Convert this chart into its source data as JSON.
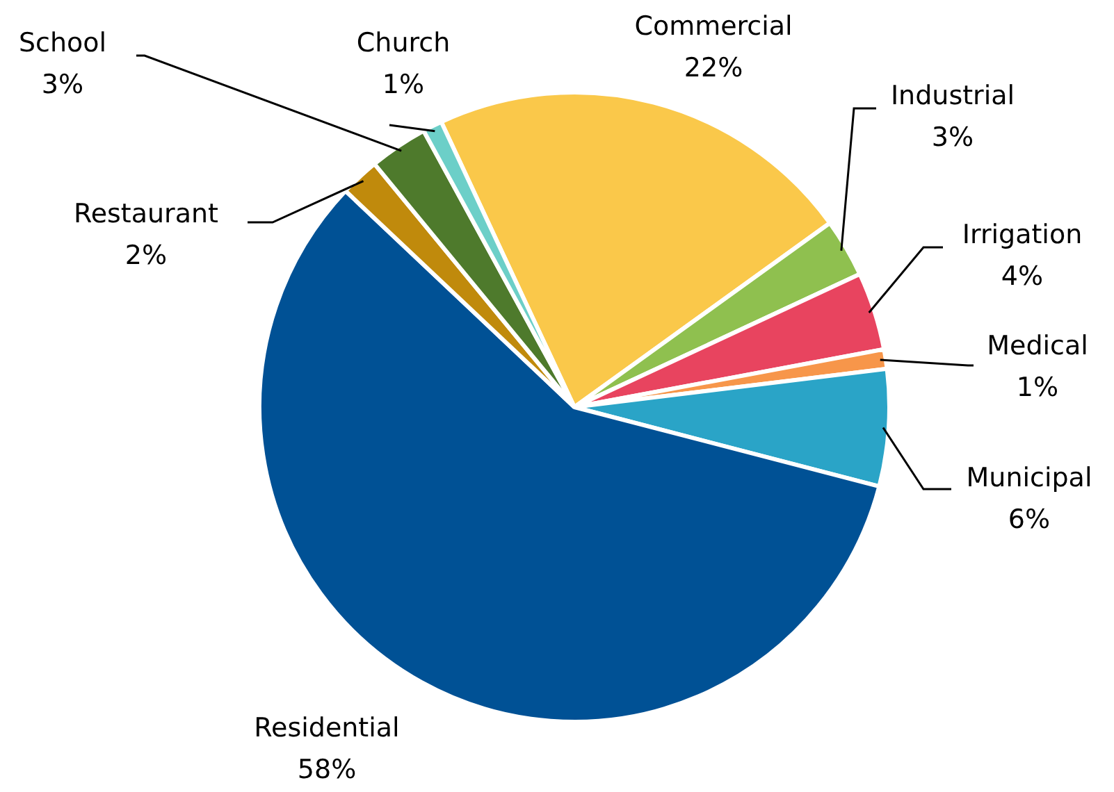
{
  "chart_data": {
    "type": "pie",
    "categories": [
      "Commercial",
      "Industrial",
      "Irrigation",
      "Medical",
      "Municipal",
      "Residential",
      "Restaurant",
      "School",
      "Church"
    ],
    "values": [
      22,
      3,
      4,
      1,
      6,
      58,
      2,
      3,
      1
    ],
    "value_labels": [
      "22%",
      "3%",
      "4%",
      "1%",
      "6%",
      "58%",
      "2%",
      "3%",
      "1%"
    ],
    "colors": [
      "#fac84a",
      "#8fc04f",
      "#e8445f",
      "#f7964a",
      "#2aa4c7",
      "#005195",
      "#c08a0c",
      "#4e7a2c",
      "#6ccfc8"
    ],
    "legend": false
  }
}
